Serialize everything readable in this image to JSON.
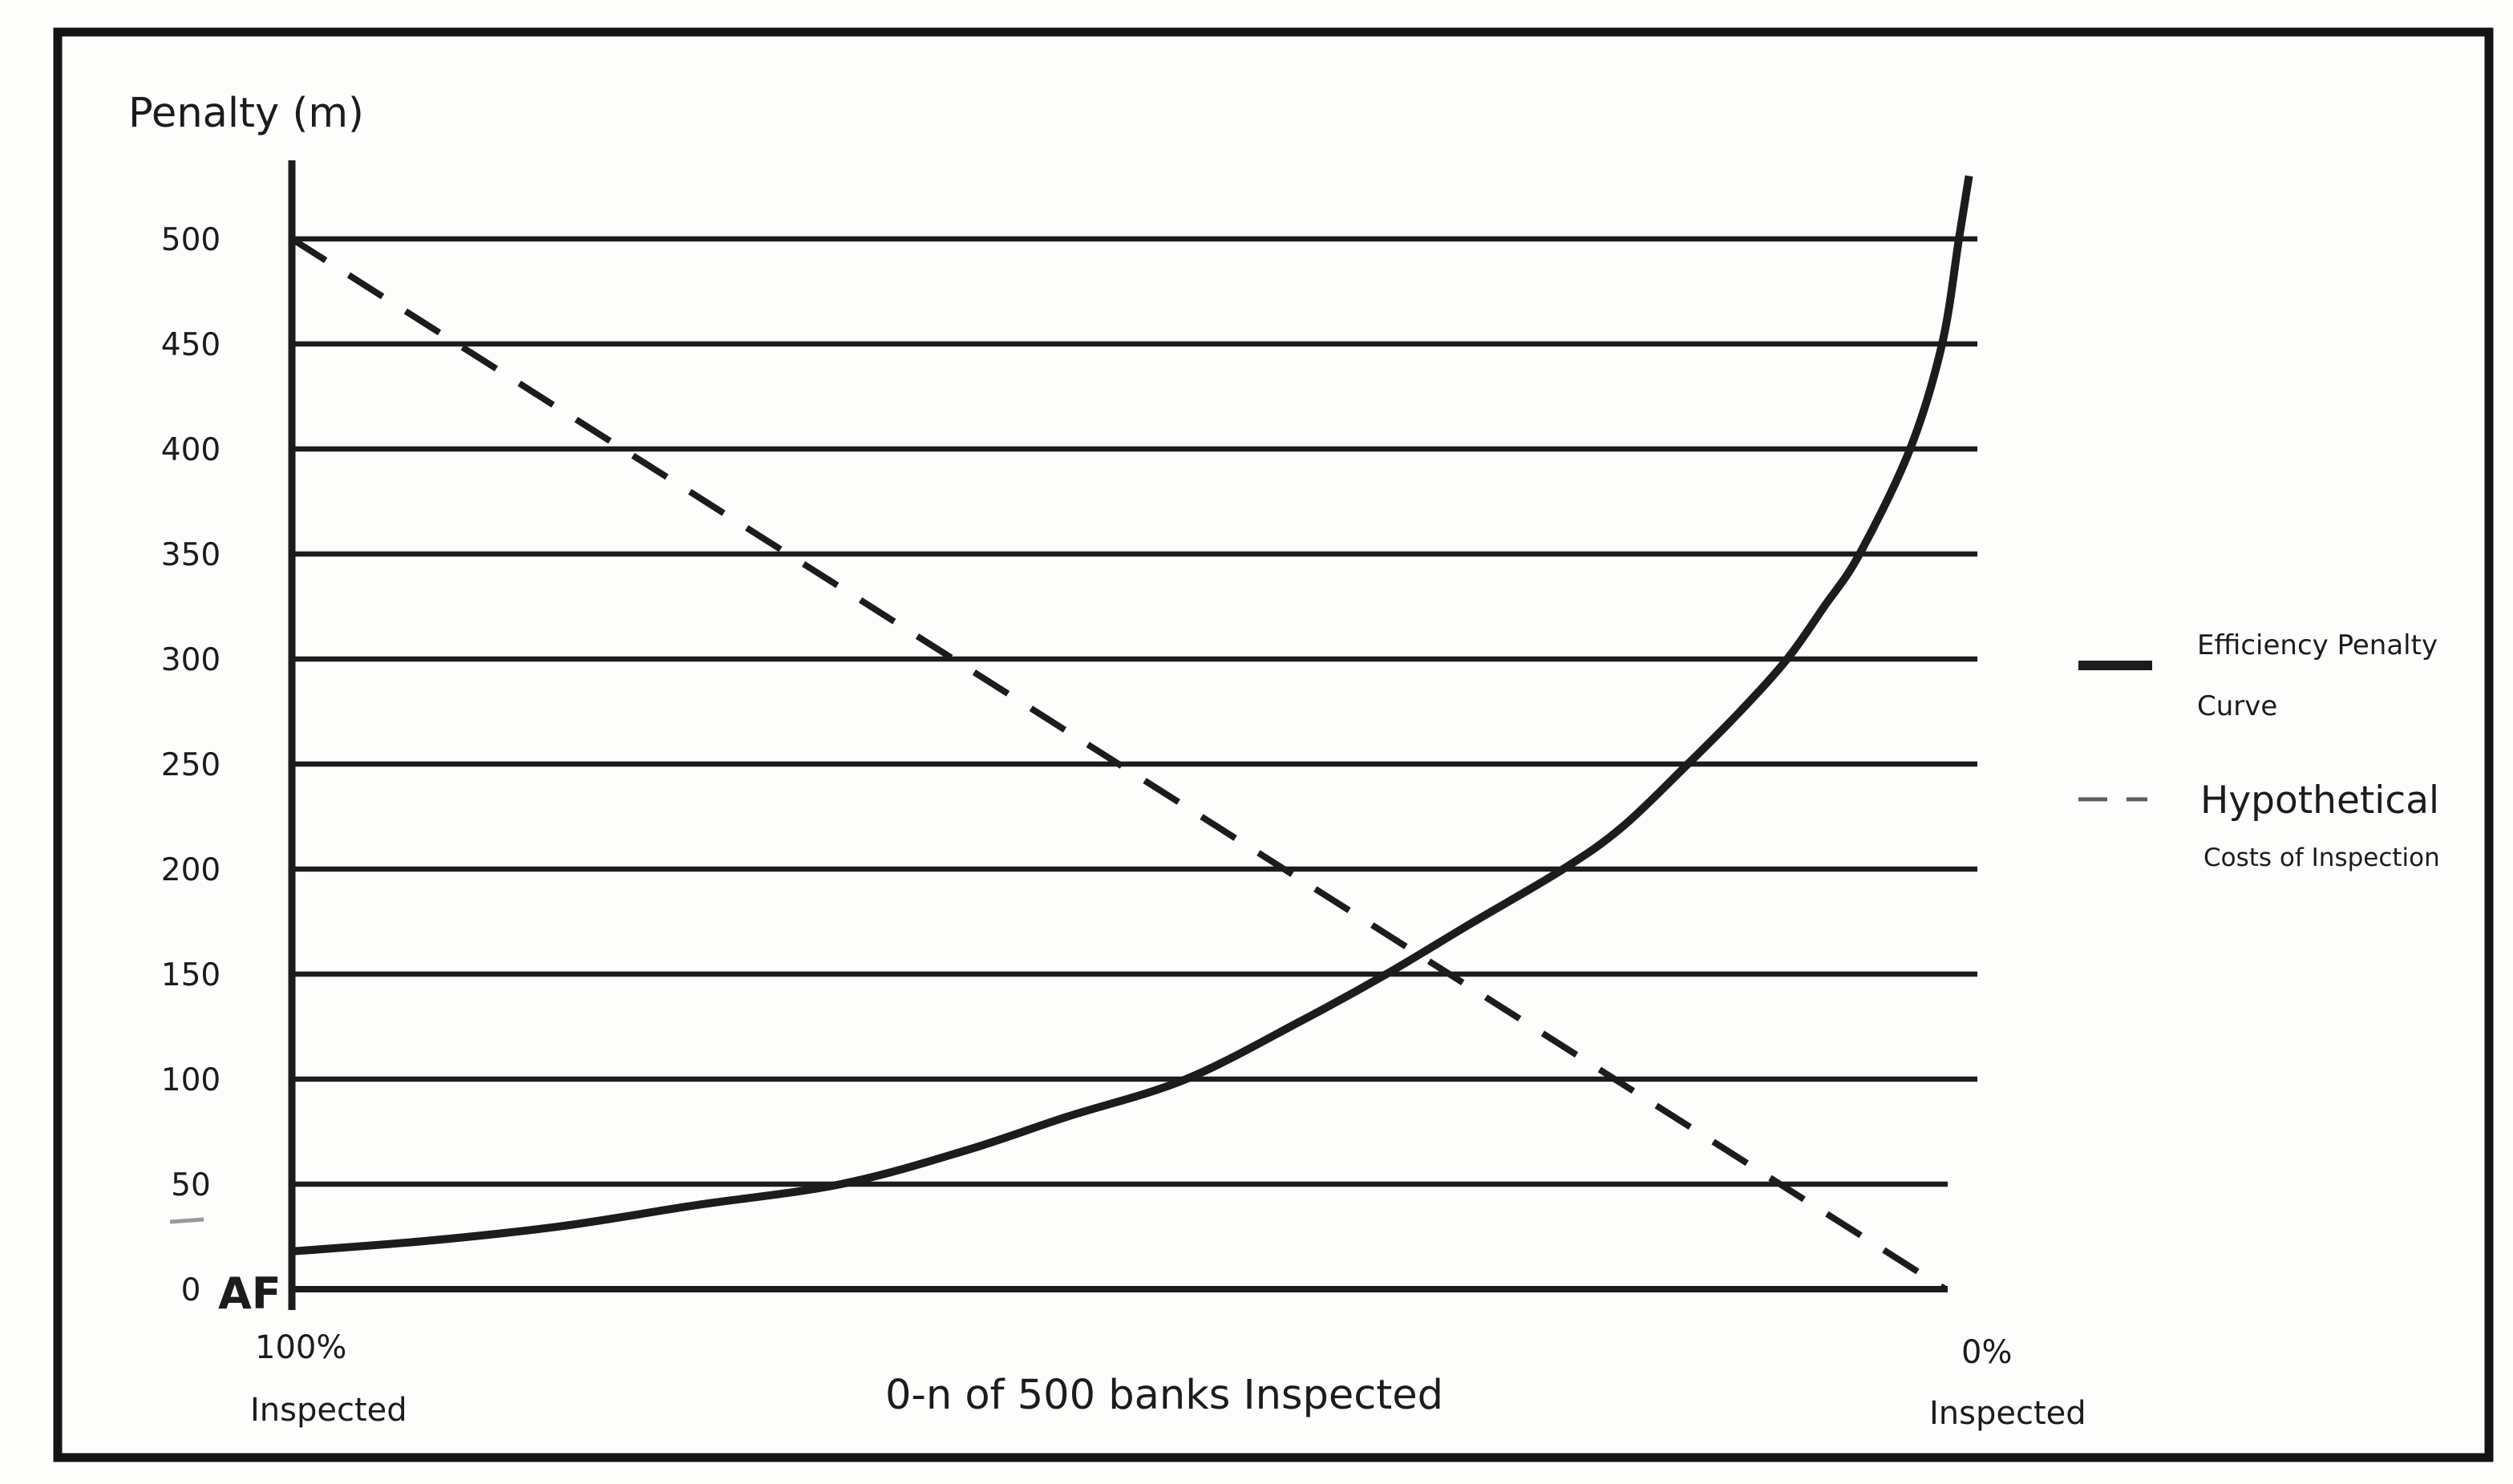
{
  "colors": {
    "ink": "#1c1c1c",
    "ink_soft": "#5f5f5f",
    "stray": "#9a9a9a",
    "frame": "#141414",
    "bg": "#fdfdfc"
  },
  "chart_data": {
    "type": "line",
    "title": "",
    "ylabel": "Penalty (m)",
    "xlabel": "0-n of 500 banks Inspected",
    "origin_label": "AF",
    "y_ticks": [
      0,
      50,
      100,
      150,
      200,
      250,
      300,
      350,
      400,
      450,
      500
    ],
    "ylim": [
      0,
      545
    ],
    "grid": "horizontal",
    "legend_position": "right",
    "x_axis_semantics": "left end = 100% of banks inspected, right end = 0% inspected",
    "x_left_tick": {
      "line1": "100%",
      "line2": "Inspected"
    },
    "x_right_tick": {
      "line1": "0%",
      "line2": "Inspected"
    },
    "series": [
      {
        "name": "Efficiency Penalty Curve",
        "style": "solid",
        "x_percent_of_axis": [
          0,
          8,
          16,
          24,
          32.6,
          40,
          46,
          53.1,
          60,
          65,
          70,
          75.5,
          79,
          82.9,
          86,
          88.8,
          91,
          93.1,
          96.1,
          98,
          99,
          99.6
        ],
        "values": [
          18,
          23,
          30,
          40,
          50,
          66,
          82,
          100,
          128,
          150,
          174,
          200,
          220,
          250,
          275,
          300,
          325,
          350,
          400,
          450,
          500,
          530
        ]
      },
      {
        "name": "Hypothetical Costs of Inspection",
        "style": "dashed",
        "x_percent_of_axis": [
          0,
          98.2
        ],
        "values": [
          500,
          0
        ]
      }
    ]
  },
  "legend": {
    "items": [
      {
        "style": "solid",
        "line1": "Efficiency Penalty",
        "line2": "Curve"
      },
      {
        "style": "dashed",
        "line1": "Hypothetical",
        "line2": "Costs of Inspection"
      }
    ]
  }
}
